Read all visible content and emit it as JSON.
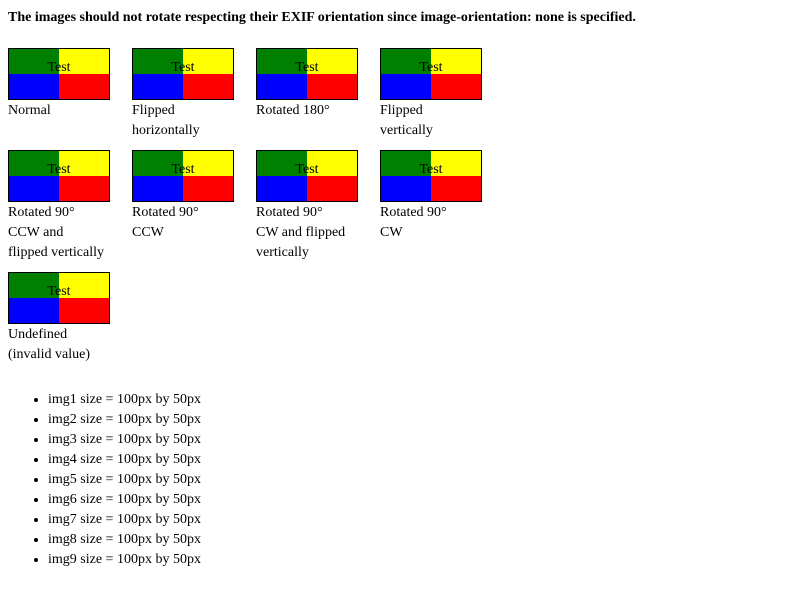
{
  "heading": "The images should not rotate respecting their EXIF orientation since image-orientation: none is specified.",
  "colors": {
    "top_left": "#008000",
    "top_right": "#ffff00",
    "bottom_left": "#0000ff",
    "bottom_right": "#ff0000"
  },
  "images": [
    {
      "text": "Test",
      "caption_lines": [
        "Normal"
      ]
    },
    {
      "text": "Test",
      "caption_lines": [
        "Flipped",
        "horizontally"
      ]
    },
    {
      "text": "Test",
      "caption_lines": [
        "Rotated 180°"
      ]
    },
    {
      "text": "Test",
      "caption_lines": [
        "Flipped",
        "vertically"
      ]
    },
    {
      "text": "Test",
      "caption_lines": [
        "Rotated 90°",
        "CCW and",
        "flipped vertically"
      ]
    },
    {
      "text": "Test",
      "caption_lines": [
        "Rotated 90°",
        "CCW"
      ]
    },
    {
      "text": "Test",
      "caption_lines": [
        "Rotated 90°",
        "CW and flipped",
        "vertically"
      ]
    },
    {
      "text": "Test",
      "caption_lines": [
        "Rotated 90°",
        "CW"
      ]
    },
    {
      "text": "Test",
      "caption_lines": [
        "Undefined",
        "(invalid value)"
      ]
    }
  ],
  "sizes": [
    "img1 size = 100px by 50px",
    "img2 size = 100px by 50px",
    "img3 size = 100px by 50px",
    "img4 size = 100px by 50px",
    "img5 size = 100px by 50px",
    "img6 size = 100px by 50px",
    "img7 size = 100px by 50px",
    "img8 size = 100px by 50px",
    "img9 size = 100px by 50px"
  ]
}
